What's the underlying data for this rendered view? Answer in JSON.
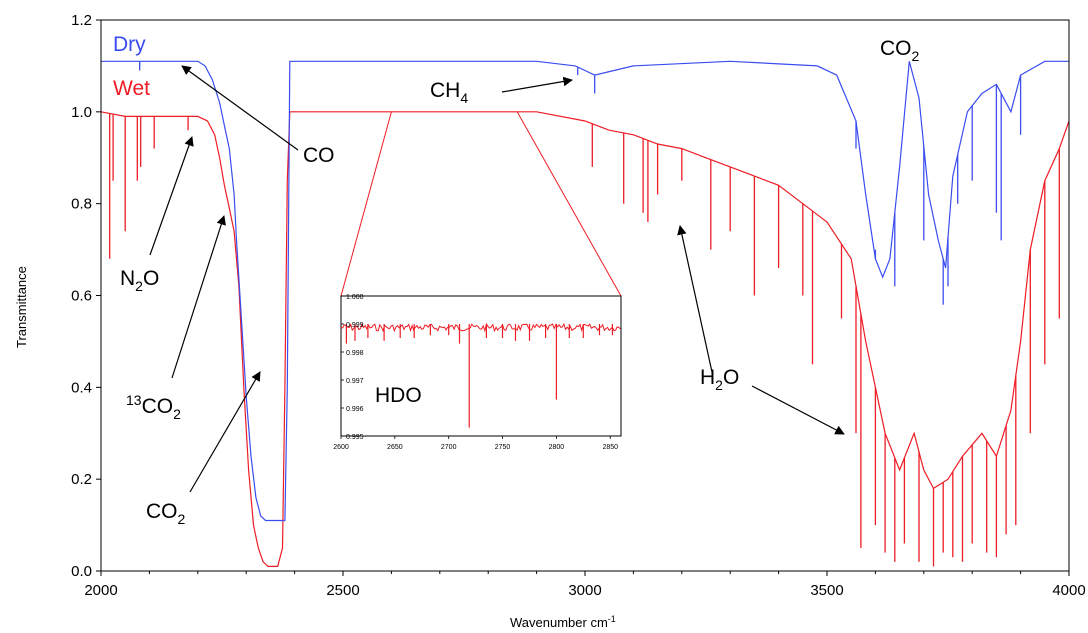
{
  "chart_data": {
    "type": "line",
    "title": "",
    "xlabel": "Wavenumber cm",
    "xlabel_sup": "-1",
    "ylabel": "Transmittance",
    "xlim": [
      2000,
      4000
    ],
    "ylim": [
      0.0,
      1.2
    ],
    "x_ticks": [
      "2000",
      "2500",
      "3000",
      "3500",
      "4000"
    ],
    "y_ticks": [
      "0.0",
      "0.2",
      "0.4",
      "0.6",
      "0.8",
      "1.0",
      "1.2"
    ],
    "grid": false,
    "legend_position": "top-left",
    "series": [
      {
        "name": "Dry",
        "color": "#3a4df0",
        "x": [
          2000,
          2100,
          2200,
          2215,
          2230,
          2245,
          2255,
          2265,
          2275,
          2280,
          2290,
          2300,
          2310,
          2320,
          2330,
          2340,
          2350,
          2360,
          2370,
          2380,
          2385,
          2390,
          2400,
          2500,
          2900,
          2980,
          3000,
          3020,
          3060,
          3100,
          3300,
          3480,
          3520,
          3560,
          3580,
          3600,
          3615,
          3630,
          3650,
          3670,
          3690,
          3710,
          3730,
          3745,
          3760,
          3790,
          3820,
          3850,
          3880,
          3900,
          3950,
          4000
        ],
        "y": [
          1.11,
          1.11,
          1.11,
          1.1,
          1.07,
          1.02,
          0.97,
          0.92,
          0.82,
          0.72,
          0.55,
          0.38,
          0.25,
          0.16,
          0.12,
          0.11,
          0.11,
          0.11,
          0.11,
          0.11,
          0.4,
          1.11,
          1.11,
          1.11,
          1.11,
          1.1,
          1.09,
          1.08,
          1.09,
          1.1,
          1.11,
          1.1,
          1.08,
          0.98,
          0.82,
          0.68,
          0.64,
          0.68,
          0.88,
          1.11,
          1.03,
          0.82,
          0.72,
          0.66,
          0.86,
          1.0,
          1.04,
          1.06,
          1.0,
          1.08,
          1.11,
          1.11
        ],
        "dips": [
          {
            "x": 2080,
            "y": 1.09
          },
          {
            "x": 2985,
            "y": 1.08
          },
          {
            "x": 3020,
            "y": 1.04
          },
          {
            "x": 3560,
            "y": 0.92
          },
          {
            "x": 3600,
            "y": 0.7
          },
          {
            "x": 3640,
            "y": 0.62
          },
          {
            "x": 3700,
            "y": 0.72
          },
          {
            "x": 3740,
            "y": 0.58
          },
          {
            "x": 3750,
            "y": 0.62
          },
          {
            "x": 3770,
            "y": 0.8
          },
          {
            "x": 3800,
            "y": 0.85
          },
          {
            "x": 3850,
            "y": 0.78
          },
          {
            "x": 3860,
            "y": 0.72
          },
          {
            "x": 3900,
            "y": 0.95
          }
        ]
      },
      {
        "name": "Wet",
        "color": "#ee1c24",
        "x": [
          2000,
          2050,
          2100,
          2150,
          2200,
          2220,
          2235,
          2245,
          2255,
          2265,
          2275,
          2285,
          2295,
          2305,
          2315,
          2325,
          2335,
          2345,
          2355,
          2365,
          2375,
          2380,
          2385,
          2390,
          2400,
          2500,
          2700,
          2900,
          3000,
          3050,
          3100,
          3150,
          3200,
          3250,
          3300,
          3350,
          3400,
          3450,
          3500,
          3550,
          3580,
          3600,
          3620,
          3650,
          3680,
          3700,
          3720,
          3750,
          3780,
          3820,
          3850,
          3880,
          3900,
          3920,
          3950,
          3980,
          4000
        ],
        "y": [
          1.0,
          0.99,
          0.99,
          0.99,
          0.99,
          0.98,
          0.95,
          0.9,
          0.84,
          0.79,
          0.74,
          0.62,
          0.4,
          0.22,
          0.1,
          0.05,
          0.02,
          0.01,
          0.01,
          0.01,
          0.05,
          0.4,
          0.85,
          1.0,
          1.0,
          1.0,
          1.0,
          1.0,
          0.98,
          0.96,
          0.95,
          0.93,
          0.92,
          0.9,
          0.88,
          0.86,
          0.84,
          0.8,
          0.76,
          0.68,
          0.5,
          0.4,
          0.3,
          0.22,
          0.3,
          0.22,
          0.18,
          0.2,
          0.25,
          0.3,
          0.25,
          0.35,
          0.5,
          0.7,
          0.85,
          0.92,
          0.98
        ],
        "dips": [
          {
            "x": 2018,
            "y": 0.68
          },
          {
            "x": 2025,
            "y": 0.85
          },
          {
            "x": 2050,
            "y": 0.74
          },
          {
            "x": 2075,
            "y": 0.85
          },
          {
            "x": 2082,
            "y": 0.88
          },
          {
            "x": 2110,
            "y": 0.92
          },
          {
            "x": 2180,
            "y": 0.96
          },
          {
            "x": 3015,
            "y": 0.88
          },
          {
            "x": 3080,
            "y": 0.8
          },
          {
            "x": 3120,
            "y": 0.78
          },
          {
            "x": 3130,
            "y": 0.76
          },
          {
            "x": 3150,
            "y": 0.82
          },
          {
            "x": 3200,
            "y": 0.85
          },
          {
            "x": 3260,
            "y": 0.7
          },
          {
            "x": 3300,
            "y": 0.74
          },
          {
            "x": 3350,
            "y": 0.6
          },
          {
            "x": 3400,
            "y": 0.66
          },
          {
            "x": 3450,
            "y": 0.6
          },
          {
            "x": 3470,
            "y": 0.45
          },
          {
            "x": 3530,
            "y": 0.55
          },
          {
            "x": 3560,
            "y": 0.3
          },
          {
            "x": 3570,
            "y": 0.05
          },
          {
            "x": 3600,
            "y": 0.1
          },
          {
            "x": 3620,
            "y": 0.04
          },
          {
            "x": 3640,
            "y": 0.02
          },
          {
            "x": 3660,
            "y": 0.06
          },
          {
            "x": 3690,
            "y": 0.02
          },
          {
            "x": 3720,
            "y": 0.01
          },
          {
            "x": 3740,
            "y": 0.04
          },
          {
            "x": 3760,
            "y": 0.03
          },
          {
            "x": 3780,
            "y": 0.02
          },
          {
            "x": 3800,
            "y": 0.06
          },
          {
            "x": 3830,
            "y": 0.04
          },
          {
            "x": 3850,
            "y": 0.03
          },
          {
            "x": 3870,
            "y": 0.08
          },
          {
            "x": 3890,
            "y": 0.1
          },
          {
            "x": 3920,
            "y": 0.3
          },
          {
            "x": 3950,
            "y": 0.45
          },
          {
            "x": 3980,
            "y": 0.55
          }
        ]
      }
    ],
    "inset": {
      "title": "",
      "xlim": [
        2600,
        2860
      ],
      "ylim": [
        0.995,
        1.0
      ],
      "x_ticks": [
        "2600",
        "2650",
        "2700",
        "2750",
        "2800",
        "2850"
      ],
      "y_ticks": [
        "0.995",
        "0.996",
        "0.997",
        "0.998",
        "0.999",
        "1.000"
      ],
      "label": "HDO",
      "color": "#ee1c24",
      "baseline": 0.999,
      "dips": [
        {
          "x": 2605,
          "y": 0.9983
        },
        {
          "x": 2613,
          "y": 0.9984
        },
        {
          "x": 2625,
          "y": 0.9985
        },
        {
          "x": 2640,
          "y": 0.9984
        },
        {
          "x": 2655,
          "y": 0.9985
        },
        {
          "x": 2668,
          "y": 0.9985
        },
        {
          "x": 2683,
          "y": 0.9986
        },
        {
          "x": 2700,
          "y": 0.9986
        },
        {
          "x": 2710,
          "y": 0.9983
        },
        {
          "x": 2719,
          "y": 0.9953
        },
        {
          "x": 2735,
          "y": 0.9985
        },
        {
          "x": 2750,
          "y": 0.9985
        },
        {
          "x": 2762,
          "y": 0.9984
        },
        {
          "x": 2775,
          "y": 0.9984
        },
        {
          "x": 2790,
          "y": 0.9985
        },
        {
          "x": 2800,
          "y": 0.9963
        },
        {
          "x": 2812,
          "y": 0.9985
        },
        {
          "x": 2825,
          "y": 0.9985
        },
        {
          "x": 2840,
          "y": 0.9986
        },
        {
          "x": 2852,
          "y": 0.9986
        }
      ]
    },
    "annotations": [
      {
        "id": "co",
        "text": "CO"
      },
      {
        "id": "ch4",
        "text": "CH",
        "sub": "4"
      },
      {
        "id": "co2_top",
        "text": "CO",
        "sub": "2"
      },
      {
        "id": "n2o",
        "text": "N",
        "sub": "2",
        "tail": "O"
      },
      {
        "id": "c13o2",
        "sup": "13",
        "text": "CO",
        "sub": "2"
      },
      {
        "id": "co2_low",
        "text": "CO",
        "sub": "2"
      },
      {
        "id": "h2o",
        "text": "H",
        "sub": "2",
        "tail": "O"
      }
    ]
  }
}
